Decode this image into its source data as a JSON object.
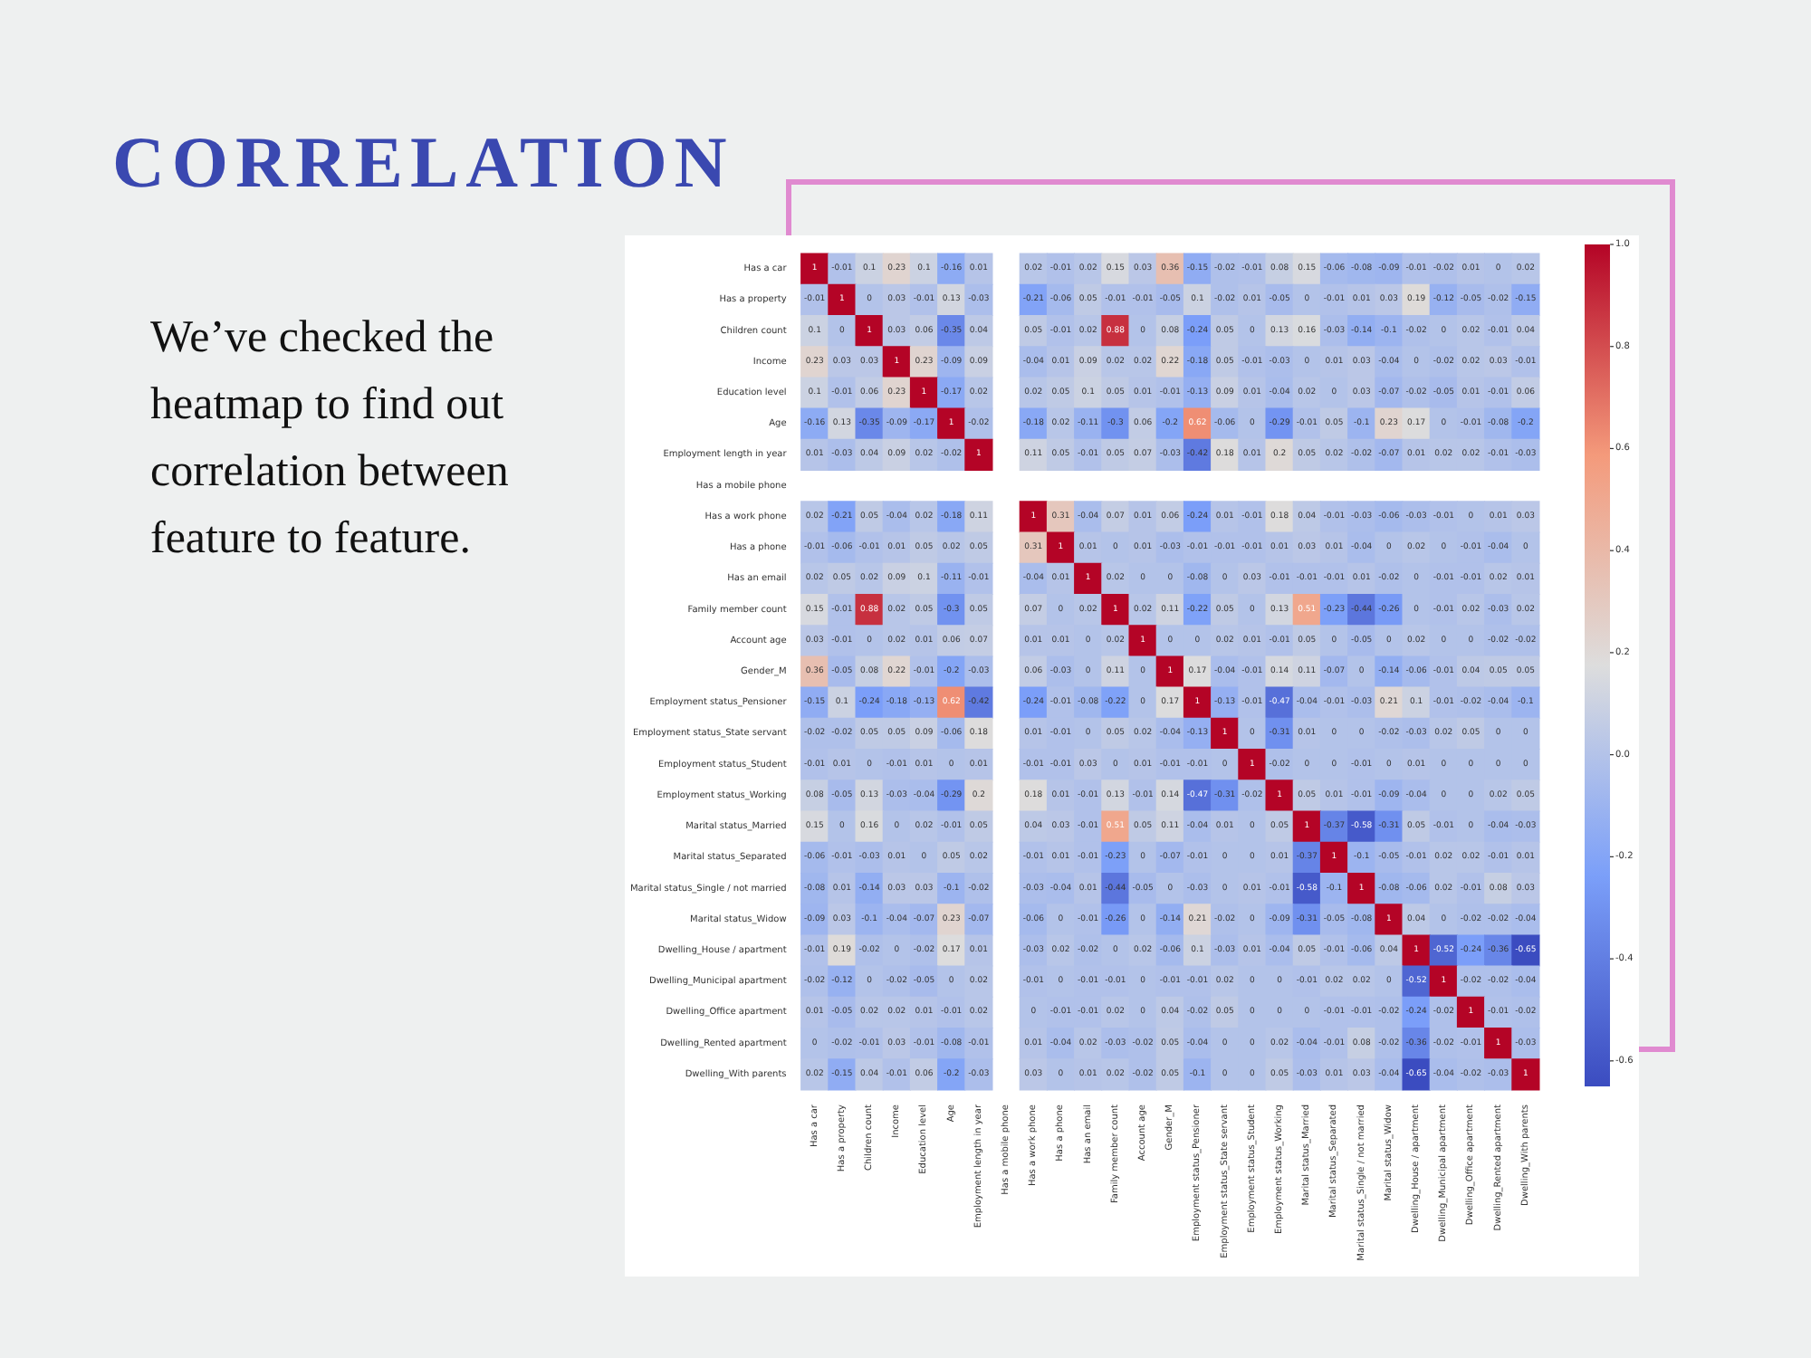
{
  "chart_data": {
    "type": "heatmap",
    "title": "CORRELATION",
    "annotations": [
      "We’ve checked the heatmap to find out correlation between feature to feature."
    ],
    "categories": [
      "Has a car",
      "Has a property",
      "Children count",
      "Income",
      "Education level",
      "Age",
      "Employment length in year",
      "Has a mobile phone",
      "Has a work phone",
      "Has a phone",
      "Has an email",
      "Family member count",
      "Account age",
      "Gender_M",
      "Employment status_Pensioner",
      "Employment status_State servant",
      "Employment status_Student",
      "Employment status_Working",
      "Marital status_Married",
      "Marital status_Separated",
      "Marital status_Single / not married",
      "Marital status_Widow",
      "Dwelling_House / apartment",
      "Dwelling_Municipal apartment",
      "Dwelling_Office apartment",
      "Dwelling_Rented apartment",
      "Dwelling_With parents"
    ],
    "y_categories": [
      "Has a car",
      "Has a property",
      "Children count",
      "Income",
      "Education level",
      "Age",
      "Employment length in year",
      "Has a mobile phone",
      "Has a work phone",
      "Has a phone",
      "Has an email",
      "Family member count",
      "Account age",
      "Gender_M",
      "Employment status_Pensioner",
      "Employment status_State servant",
      "Employment status_Student",
      "Employment status_Working",
      "Marital status_Married",
      "Marital status_Separated",
      "Marital status_Single / not married",
      "Marital status_Widow",
      "Dwelling_House / apartment",
      "Dwelling_Municipal apartment",
      "Dwelling_Office apartment",
      "Dwelling_Rented apartment",
      "Dwelling_With parents"
    ],
    "cells": [
      [
        1,
        -0.01,
        0.1,
        0.23,
        0.1,
        -0.16,
        0.01,
        null,
        0.02,
        -0.01,
        0.02,
        0.15,
        0.03,
        0.36,
        -0.15,
        -0.02,
        -0.01,
        0.08,
        0.15,
        -0.06,
        -0.08,
        -0.09,
        -0.01,
        -0.02,
        0.01,
        0,
        0.02
      ],
      [
        -0.01,
        1,
        0,
        0.03,
        -0.01,
        0.13,
        -0.03,
        null,
        -0.21,
        -0.06,
        0.05,
        -0.01,
        -0.01,
        -0.05,
        0.1,
        -0.02,
        0.01,
        -0.05,
        0,
        -0.01,
        0.01,
        0.03,
        0.19,
        -0.12,
        -0.05,
        -0.02,
        -0.15
      ],
      [
        0.1,
        0,
        1,
        0.03,
        0.06,
        -0.35,
        0.04,
        null,
        0.05,
        -0.01,
        0.02,
        0.88,
        0,
        0.08,
        -0.24,
        0.05,
        0,
        0.13,
        0.16,
        -0.03,
        -0.14,
        -0.1,
        -0.02,
        0,
        0.02,
        -0.01,
        0.04
      ],
      [
        0.23,
        0.03,
        0.03,
        1,
        0.23,
        -0.09,
        0.09,
        null,
        -0.04,
        0.01,
        0.09,
        0.02,
        0.02,
        0.22,
        -0.18,
        0.05,
        -0.01,
        -0.03,
        0,
        0.01,
        0.03,
        -0.04,
        0,
        -0.02,
        0.02,
        0.03,
        -0.01
      ],
      [
        0.1,
        -0.01,
        0.06,
        0.23,
        1,
        -0.17,
        0.02,
        null,
        0.02,
        0.05,
        0.1,
        0.05,
        0.01,
        -0.01,
        -0.13,
        0.09,
        0.01,
        -0.04,
        0.02,
        0,
        0.03,
        -0.07,
        -0.02,
        -0.05,
        0.01,
        -0.01,
        0.06
      ],
      [
        -0.16,
        0.13,
        -0.35,
        -0.09,
        -0.17,
        1,
        -0.02,
        null,
        -0.18,
        0.02,
        -0.11,
        -0.3,
        0.06,
        -0.2,
        0.62,
        -0.06,
        0,
        -0.29,
        -0.01,
        0.05,
        -0.1,
        0.23,
        0.17,
        0,
        -0.01,
        -0.08,
        -0.2
      ],
      [
        0.01,
        -0.03,
        0.04,
        0.09,
        0.02,
        -0.02,
        1,
        null,
        0.11,
        0.05,
        -0.01,
        0.05,
        0.07,
        -0.03,
        -0.42,
        0.18,
        0.01,
        0.2,
        0.05,
        0.02,
        -0.02,
        -0.07,
        0.01,
        0.02,
        0.02,
        -0.01,
        -0.03
      ],
      [
        null,
        null,
        null,
        null,
        null,
        null,
        null,
        null,
        null,
        null,
        null,
        null,
        null,
        null,
        null,
        null,
        null,
        null,
        null,
        null,
        null,
        null,
        null,
        null,
        null,
        null,
        null
      ],
      [
        0.02,
        -0.21,
        0.05,
        -0.04,
        0.02,
        -0.18,
        0.11,
        null,
        1,
        0.31,
        -0.04,
        0.07,
        0.01,
        0.06,
        -0.24,
        0.01,
        -0.01,
        0.18,
        0.04,
        -0.01,
        -0.03,
        -0.06,
        -0.03,
        -0.01,
        0,
        0.01,
        0.03
      ],
      [
        -0.01,
        -0.06,
        -0.01,
        0.01,
        0.05,
        0.02,
        0.05,
        null,
        0.31,
        1,
        0.01,
        0,
        0.01,
        -0.03,
        -0.01,
        -0.01,
        -0.01,
        0.01,
        0.03,
        0.01,
        -0.04,
        0,
        0.02,
        0,
        -0.01,
        -0.04,
        0
      ],
      [
        0.02,
        0.05,
        0.02,
        0.09,
        0.1,
        -0.11,
        -0.01,
        null,
        -0.04,
        0.01,
        1,
        0.02,
        0,
        0,
        -0.08,
        0,
        0.03,
        -0.01,
        -0.01,
        -0.01,
        0.01,
        -0.02,
        0,
        -0.01,
        -0.01,
        0.02,
        0.01
      ],
      [
        0.15,
        -0.01,
        0.88,
        0.02,
        0.05,
        -0.3,
        0.05,
        null,
        0.07,
        0,
        0.02,
        1,
        0.02,
        0.11,
        -0.22,
        0.05,
        0,
        0.13,
        0.51,
        -0.23,
        -0.44,
        -0.26,
        0,
        -0.01,
        0.02,
        -0.03,
        0.02
      ],
      [
        0.03,
        -0.01,
        0,
        0.02,
        0.01,
        0.06,
        0.07,
        null,
        0.01,
        0.01,
        0,
        0.02,
        1,
        0,
        0,
        0.02,
        0.01,
        -0.01,
        0.05,
        0,
        -0.05,
        0,
        0.02,
        0,
        0,
        -0.02,
        -0.02
      ],
      [
        0.36,
        -0.05,
        0.08,
        0.22,
        -0.01,
        -0.2,
        -0.03,
        null,
        0.06,
        -0.03,
        0,
        0.11,
        0,
        1,
        0.17,
        -0.04,
        -0.01,
        0.14,
        0.11,
        -0.07,
        0,
        -0.14,
        -0.06,
        -0.01,
        0.04,
        0.05,
        0.05
      ],
      [
        -0.15,
        0.1,
        -0.24,
        -0.18,
        -0.13,
        0.62,
        -0.42,
        null,
        -0.24,
        -0.01,
        -0.08,
        -0.22,
        0,
        0.17,
        1,
        -0.13,
        -0.01,
        -0.47,
        -0.04,
        -0.01,
        -0.03,
        0.21,
        0.1,
        -0.01,
        -0.02,
        -0.04,
        -0.1
      ],
      [
        -0.02,
        -0.02,
        0.05,
        0.05,
        0.09,
        -0.06,
        0.18,
        null,
        0.01,
        -0.01,
        0,
        0.05,
        0.02,
        -0.04,
        -0.13,
        1,
        0,
        -0.31,
        0.01,
        0,
        0,
        -0.02,
        -0.03,
        0.02,
        0.05,
        0,
        0
      ],
      [
        -0.01,
        0.01,
        0,
        -0.01,
        0.01,
        0,
        0.01,
        null,
        -0.01,
        -0.01,
        0.03,
        0,
        0.01,
        -0.01,
        -0.01,
        0,
        1,
        -0.02,
        0,
        0,
        -0.01,
        0,
        0.01,
        0,
        0,
        0,
        0
      ],
      [
        0.08,
        -0.05,
        0.13,
        -0.03,
        -0.04,
        -0.29,
        0.2,
        null,
        0.18,
        0.01,
        -0.01,
        0.13,
        -0.01,
        0.14,
        -0.47,
        -0.31,
        -0.02,
        1,
        0.05,
        0.01,
        -0.01,
        -0.09,
        -0.04,
        0,
        0,
        0.02,
        0.05
      ],
      [
        0.15,
        0,
        0.16,
        0,
        0.02,
        -0.01,
        0.05,
        null,
        0.04,
        0.03,
        -0.01,
        0.51,
        0.05,
        0.11,
        -0.04,
        0.01,
        0,
        0.05,
        1,
        -0.37,
        -0.58,
        -0.31,
        0.05,
        -0.01,
        0,
        -0.04,
        -0.03
      ],
      [
        -0.06,
        -0.01,
        -0.03,
        0.01,
        0,
        0.05,
        0.02,
        null,
        -0.01,
        0.01,
        -0.01,
        -0.23,
        0,
        -0.07,
        -0.01,
        0,
        0,
        0.01,
        -0.37,
        1,
        -0.1,
        -0.05,
        -0.01,
        0.02,
        0.02,
        -0.01,
        0.01
      ],
      [
        -0.08,
        0.01,
        -0.14,
        0.03,
        0.03,
        -0.1,
        -0.02,
        null,
        -0.03,
        -0.04,
        0.01,
        -0.44,
        -0.05,
        0,
        -0.03,
        0,
        0.01,
        -0.01,
        -0.58,
        -0.1,
        1,
        -0.08,
        -0.06,
        0.02,
        -0.01,
        0.08,
        0.03
      ],
      [
        -0.09,
        0.03,
        -0.1,
        -0.04,
        -0.07,
        0.23,
        -0.07,
        null,
        -0.06,
        0,
        -0.01,
        -0.26,
        0,
        -0.14,
        0.21,
        -0.02,
        0,
        -0.09,
        -0.31,
        -0.05,
        -0.08,
        1,
        0.04,
        0,
        -0.02,
        -0.02,
        -0.04
      ],
      [
        -0.01,
        0.19,
        -0.02,
        0,
        -0.02,
        0.17,
        0.01,
        null,
        -0.03,
        0.02,
        -0.02,
        0,
        0.02,
        -0.06,
        0.1,
        -0.03,
        0.01,
        -0.04,
        0.05,
        -0.01,
        -0.06,
        0.04,
        1,
        -0.52,
        -0.24,
        -0.36,
        -0.65
      ],
      [
        -0.02,
        -0.12,
        0,
        -0.02,
        -0.05,
        0,
        0.02,
        null,
        -0.01,
        0,
        -0.01,
        -0.01,
        0,
        -0.01,
        -0.01,
        0.02,
        0,
        0,
        -0.01,
        0.02,
        0.02,
        0,
        -0.52,
        1,
        -0.02,
        -0.02,
        -0.04
      ],
      [
        0.01,
        -0.05,
        0.02,
        0.02,
        0.01,
        -0.01,
        0.02,
        null,
        0,
        -0.01,
        -0.01,
        0.02,
        0,
        0.04,
        -0.02,
        0.05,
        0,
        0,
        0,
        -0.01,
        -0.01,
        -0.02,
        -0.24,
        -0.02,
        1,
        -0.01,
        -0.02
      ],
      [
        0,
        -0.02,
        -0.01,
        0.03,
        -0.01,
        -0.08,
        -0.01,
        null,
        0.01,
        -0.04,
        0.02,
        -0.03,
        -0.02,
        0.05,
        -0.04,
        0,
        0,
        0.02,
        -0.04,
        -0.01,
        0.08,
        -0.02,
        -0.36,
        -0.02,
        -0.01,
        1,
        -0.03
      ],
      [
        0.02,
        -0.15,
        0.04,
        -0.01,
        0.06,
        -0.2,
        -0.03,
        null,
        0.03,
        0,
        0.01,
        0.02,
        -0.02,
        0.05,
        -0.1,
        0,
        0,
        0.05,
        -0.03,
        0.01,
        0.03,
        -0.04,
        -0.65,
        -0.04,
        -0.02,
        -0.03,
        1
      ]
    ],
    "data_labels": true,
    "clim": [
      -0.65,
      1
    ],
    "cticks": [
      {
        "value": 1,
        "label": "1.0"
      },
      {
        "value": 0.8,
        "label": "0.8"
      },
      {
        "value": 0.6,
        "label": "0.6"
      },
      {
        "value": 0.4,
        "label": "0.4"
      },
      {
        "value": 0.2,
        "label": "0.2"
      },
      {
        "value": 0,
        "label": "0.0"
      },
      {
        "value": -0.2,
        "label": "-0.2"
      },
      {
        "value": -0.4,
        "label": "-0.4"
      },
      {
        "value": -0.6,
        "label": "-0.6"
      }
    ]
  }
}
